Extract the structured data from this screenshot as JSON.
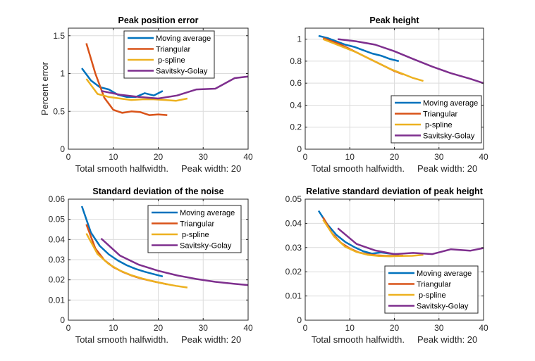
{
  "figure": {
    "background": "#ffffff"
  },
  "series_colors": {
    "Moving average": "#0072BD",
    "Triangular": "#D95319",
    "p-spline": "#EDB120",
    "Savitsky-Golay": "#7E2F8E"
  },
  "chart_data": [
    {
      "type": "line",
      "title": "Peak position error",
      "xlabel": "Total smooth halfwidth.     Peak width: 20",
      "ylabel": "Percent error",
      "xlim": [
        0,
        40
      ],
      "ylim": [
        0,
        1.6
      ],
      "xticks": [
        0,
        10,
        20,
        30,
        40
      ],
      "yticks": [
        0,
        0.5,
        1,
        1.5
      ],
      "ytick_labels": [
        "0",
        "0.5",
        "1",
        "1.5"
      ],
      "grid": true,
      "legend_position": "top-right",
      "series": [
        {
          "name": "Moving average",
          "x": [
            3,
            5,
            7,
            9,
            11,
            13,
            15,
            17,
            19,
            21
          ],
          "y": [
            1.07,
            0.91,
            0.82,
            0.79,
            0.72,
            0.69,
            0.69,
            0.74,
            0.71,
            0.77
          ]
        },
        {
          "name": "Triangular",
          "x": [
            4,
            6,
            8,
            10,
            12,
            14,
            16,
            18,
            20,
            22
          ],
          "y": [
            1.4,
            1.0,
            0.68,
            0.52,
            0.48,
            0.5,
            0.49,
            0.45,
            0.46,
            0.45
          ]
        },
        {
          "name": "p-spline",
          "x": [
            4,
            6.5,
            9,
            11.5,
            14,
            16.5,
            19,
            21.5,
            24,
            26.5
          ],
          "y": [
            0.93,
            0.73,
            0.69,
            0.67,
            0.65,
            0.66,
            0.66,
            0.65,
            0.64,
            0.67
          ]
        },
        {
          "name": "Savitsky-Golay",
          "x": [
            7.3,
            11.5,
            15.7,
            20,
            24.2,
            28.5,
            32.7,
            37,
            40
          ],
          "y": [
            0.77,
            0.72,
            0.69,
            0.67,
            0.71,
            0.79,
            0.8,
            0.94,
            0.96
          ]
        }
      ]
    },
    {
      "type": "line",
      "title": "Peak height",
      "xlabel": "Total smooth halfwidth.     Peak width: 20",
      "ylabel": "",
      "xlim": [
        0,
        40
      ],
      "ylim": [
        0,
        1.1
      ],
      "xticks": [
        0,
        10,
        20,
        30,
        40
      ],
      "yticks": [
        0,
        0.2,
        0.4,
        0.6,
        0.8,
        1
      ],
      "ytick_labels": [
        "0",
        "0.2",
        "0.4",
        "0.6",
        "0.8",
        "1"
      ],
      "grid": true,
      "legend_position": "bottom-right",
      "series": [
        {
          "name": "Moving average",
          "x": [
            3,
            5,
            7,
            9,
            11,
            13,
            15,
            17,
            19,
            21
          ],
          "y": [
            1.03,
            1.01,
            0.98,
            0.95,
            0.93,
            0.9,
            0.87,
            0.85,
            0.82,
            0.8
          ]
        },
        {
          "name": "Triangular",
          "x": [
            4,
            6,
            8,
            10,
            12,
            14,
            16,
            18,
            20,
            22
          ],
          "y": [
            1.01,
            0.98,
            0.95,
            0.91,
            0.87,
            0.83,
            0.79,
            0.75,
            0.71,
            0.68
          ]
        },
        {
          "name": "p-spline",
          "x": [
            4,
            6.5,
            9,
            11.5,
            14,
            16.5,
            19,
            21.5,
            24,
            26.5
          ],
          "y": [
            1.0,
            0.96,
            0.92,
            0.88,
            0.83,
            0.78,
            0.73,
            0.69,
            0.65,
            0.62
          ]
        },
        {
          "name": "Savitsky-Golay",
          "x": [
            7.3,
            11.5,
            15.7,
            20,
            24.2,
            28.5,
            32.7,
            37,
            40
          ],
          "y": [
            1.0,
            0.98,
            0.95,
            0.89,
            0.82,
            0.75,
            0.69,
            0.64,
            0.6
          ]
        }
      ]
    },
    {
      "type": "line",
      "title": "Standard deviation of the noise",
      "xlabel": "Total smooth halfwidth.     Peak width: 20",
      "ylabel": "",
      "xlim": [
        0,
        40
      ],
      "ylim": [
        0,
        0.06
      ],
      "xticks": [
        0,
        10,
        20,
        30,
        40
      ],
      "yticks": [
        0,
        0.01,
        0.02,
        0.03,
        0.04,
        0.05,
        0.06
      ],
      "ytick_labels": [
        "0",
        "0.01",
        "0.02",
        "0.03",
        "0.04",
        "0.05",
        "0.06"
      ],
      "grid": true,
      "legend_position": "top-right",
      "series": [
        {
          "name": "Moving average",
          "x": [
            3,
            5,
            7,
            9,
            11,
            13,
            15,
            17,
            19,
            21
          ],
          "y": [
            0.0565,
            0.0435,
            0.0368,
            0.0326,
            0.0296,
            0.0272,
            0.0254,
            0.024,
            0.0228,
            0.0217
          ]
        },
        {
          "name": "Triangular",
          "x": [
            4,
            6,
            8,
            10,
            12,
            14,
            16,
            18,
            20,
            22
          ],
          "y": [
            0.0475,
            0.0355,
            0.0298,
            0.0263,
            0.024,
            0.0222,
            0.0208,
            0.0197,
            0.0187,
            0.0178
          ]
        },
        {
          "name": "p-spline",
          "x": [
            4,
            6.5,
            9,
            11.5,
            14,
            16.5,
            19,
            21.5,
            24,
            26.5
          ],
          "y": [
            0.043,
            0.0328,
            0.0278,
            0.0246,
            0.0223,
            0.0206,
            0.0192,
            0.018,
            0.017,
            0.0162
          ]
        },
        {
          "name": "Savitsky-Golay",
          "x": [
            7.3,
            11.5,
            15.7,
            20,
            24.2,
            28.5,
            32.7,
            37,
            40
          ],
          "y": [
            0.0405,
            0.032,
            0.0275,
            0.0245,
            0.0222,
            0.0204,
            0.019,
            0.018,
            0.0174
          ]
        }
      ]
    },
    {
      "type": "line",
      "title": "Relative standard deviation of peak height",
      "xlabel": "Total smooth halfwidth.     Peak width: 20",
      "ylabel": "",
      "xlim": [
        0,
        40
      ],
      "ylim": [
        0,
        0.05
      ],
      "xticks": [
        0,
        10,
        20,
        30,
        40
      ],
      "yticks": [
        0,
        0.01,
        0.02,
        0.03,
        0.04,
        0.05
      ],
      "ytick_labels": [
        "0",
        "0.01",
        "0.02",
        "0.03",
        "0.04",
        "0.05"
      ],
      "grid": true,
      "legend_position": "bottom-right",
      "series": [
        {
          "name": "Moving average",
          "x": [
            3,
            5,
            7,
            9,
            11,
            13,
            15,
            17,
            19,
            21
          ],
          "y": [
            0.0452,
            0.0395,
            0.0352,
            0.0323,
            0.0302,
            0.0285,
            0.0275,
            0.028,
            0.0275,
            0.0272
          ]
        },
        {
          "name": "Triangular",
          "x": [
            4,
            6,
            8,
            10,
            12,
            14,
            16,
            18,
            20,
            22
          ],
          "y": [
            0.0425,
            0.036,
            0.032,
            0.0296,
            0.028,
            0.0272,
            0.0268,
            0.0266,
            0.0266,
            0.0267
          ]
        },
        {
          "name": "p-spline",
          "x": [
            4,
            6.5,
            9,
            11.5,
            14,
            16.5,
            19,
            21.5,
            24,
            26.5
          ],
          "y": [
            0.0415,
            0.0345,
            0.0303,
            0.0282,
            0.027,
            0.0265,
            0.0264,
            0.0265,
            0.0266,
            0.027
          ]
        },
        {
          "name": "Savitsky-Golay",
          "x": [
            7.3,
            11.5,
            15.7,
            20,
            24.2,
            28.5,
            32.7,
            37,
            40
          ],
          "y": [
            0.038,
            0.0315,
            0.0288,
            0.0273,
            0.0278,
            0.0273,
            0.0293,
            0.0287,
            0.0298
          ]
        }
      ]
    }
  ]
}
